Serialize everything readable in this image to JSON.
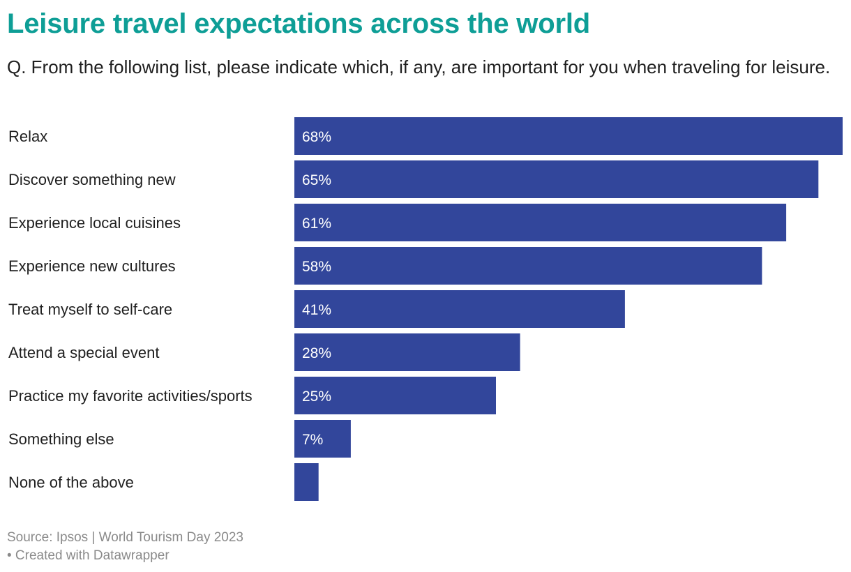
{
  "title": "Leisure travel expectations across the world",
  "subtitle": "Q. From the following list, please indicate which, if any, are important for you when traveling for leisure.",
  "footer": {
    "source": "Source: Ipsos | World Tourism Day 2023",
    "credit": "• Created with Datawrapper"
  },
  "colors": {
    "title": "#0e9e96",
    "bar": "#32469b",
    "value_label": "#ffffff"
  },
  "chart_data": {
    "type": "bar",
    "orientation": "horizontal",
    "categories": [
      "Relax",
      "Discover something new",
      "Experience local cuisines",
      "Experience new cultures",
      "Treat myself to self-care",
      "Attend a special event",
      "Practice my favorite activities/sports",
      "Something else",
      "None of the above"
    ],
    "values": [
      68,
      65,
      61,
      58,
      41,
      28,
      25,
      7,
      3
    ],
    "value_labels": [
      "68%",
      "65%",
      "61%",
      "58%",
      "41%",
      "28%",
      "25%",
      "7%",
      ""
    ],
    "xlim": [
      0,
      68
    ],
    "grid": false,
    "legend": "none"
  }
}
